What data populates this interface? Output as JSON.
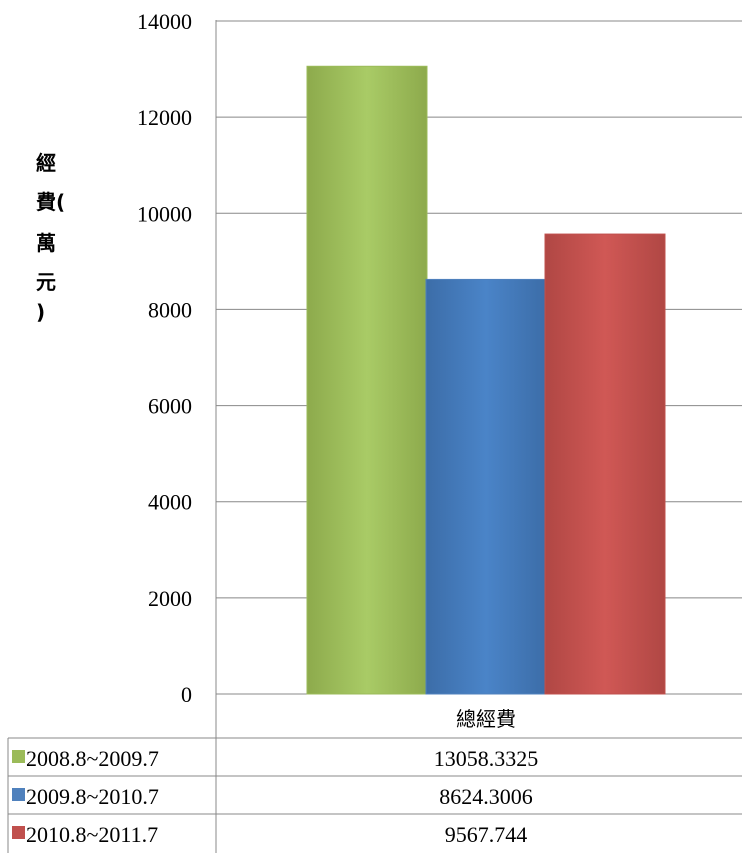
{
  "chart_data": {
    "type": "bar",
    "title": "",
    "xlabel": "",
    "ylabel": "經費(萬元)",
    "ylabel_chars": [
      "經",
      "費(",
      "萬",
      "元",
      ")"
    ],
    "categories": [
      "總經費"
    ],
    "ylim": [
      0,
      14000
    ],
    "yticks": [
      "0",
      "2000",
      "4000",
      "6000",
      "8000",
      "10000",
      "12000",
      "14000"
    ],
    "grid": true,
    "legend": "data-table",
    "series": [
      {
        "name": "2008.8~2009.7",
        "values": [
          13058.3325
        ],
        "label": "13058.3325",
        "color": "#9BBB59"
      },
      {
        "name": "2009.8~2010.7",
        "values": [
          8624.3006
        ],
        "label": "8624.3006",
        "color": "#4F81BD"
      },
      {
        "name": "2010.8~2011.7",
        "values": [
          9567.744
        ],
        "label": "9567.744",
        "color": "#C0504D"
      }
    ]
  }
}
